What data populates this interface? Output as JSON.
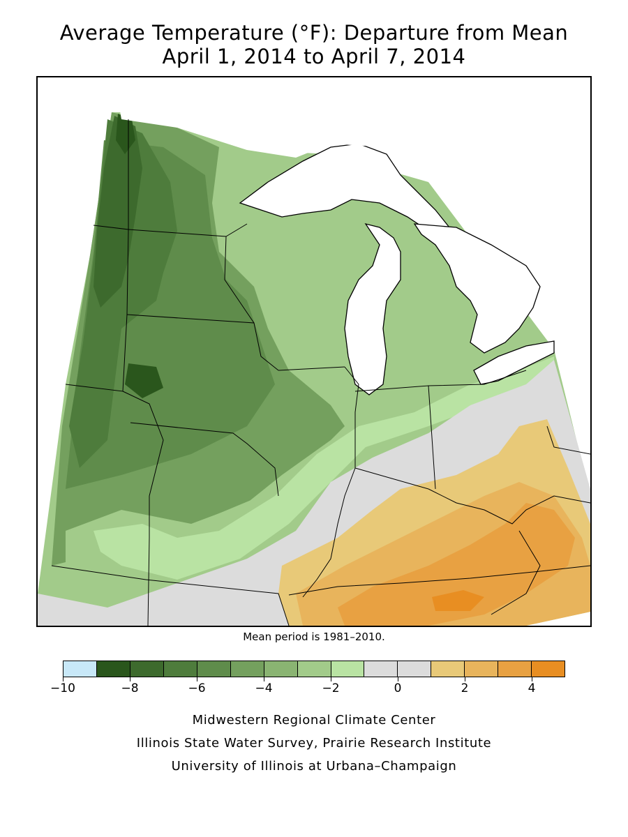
{
  "title_line1": "Average Temperature (°F): Departure from Mean",
  "title_line2": "April 1, 2014 to April 7, 2014",
  "mean_note": "Mean period is 1981–2010.",
  "legend": {
    "bins": [
      {
        "from": -10,
        "to": -9,
        "color": "#c8e8f8"
      },
      {
        "from": -9,
        "to": -8,
        "color": "#2a561c"
      },
      {
        "from": -8,
        "to": -7,
        "color": "#3d6a2d"
      },
      {
        "from": -7,
        "to": -6,
        "color": "#4e7c3c"
      },
      {
        "from": -6,
        "to": -5,
        "color": "#5f8c4b"
      },
      {
        "from": -5,
        "to": -4,
        "color": "#74a05e"
      },
      {
        "from": -4,
        "to": -3,
        "color": "#8ab472"
      },
      {
        "from": -3,
        "to": -2,
        "color": "#a2cb8a"
      },
      {
        "from": -2,
        "to": -1,
        "color": "#b9e3a3"
      },
      {
        "from": -1,
        "to": 0,
        "color": "#dcdcdc"
      },
      {
        "from": 0,
        "to": 1,
        "color": "#dcdcdc"
      },
      {
        "from": 1,
        "to": 2,
        "color": "#e8c978"
      },
      {
        "from": 2,
        "to": 3,
        "color": "#e8b45c"
      },
      {
        "from": 3,
        "to": 4,
        "color": "#e8a142"
      },
      {
        "from": 4,
        "to": 5,
        "color": "#e88e22"
      }
    ],
    "tick_labels": [
      "−10",
      "−8",
      "−6",
      "−4",
      "−2",
      "0",
      "2",
      "4"
    ],
    "tick_values": [
      -10,
      -8,
      -6,
      -4,
      -2,
      0,
      2,
      4
    ],
    "min": -10,
    "max": 5
  },
  "credits": [
    "Midwestern Regional Climate Center",
    "Illinois State Water Survey, Prairie Research Institute",
    "University of Illinois at Urbana–Champaign"
  ],
  "colors": {
    "lakes": "#ffffff",
    "borders": "#000000"
  }
}
